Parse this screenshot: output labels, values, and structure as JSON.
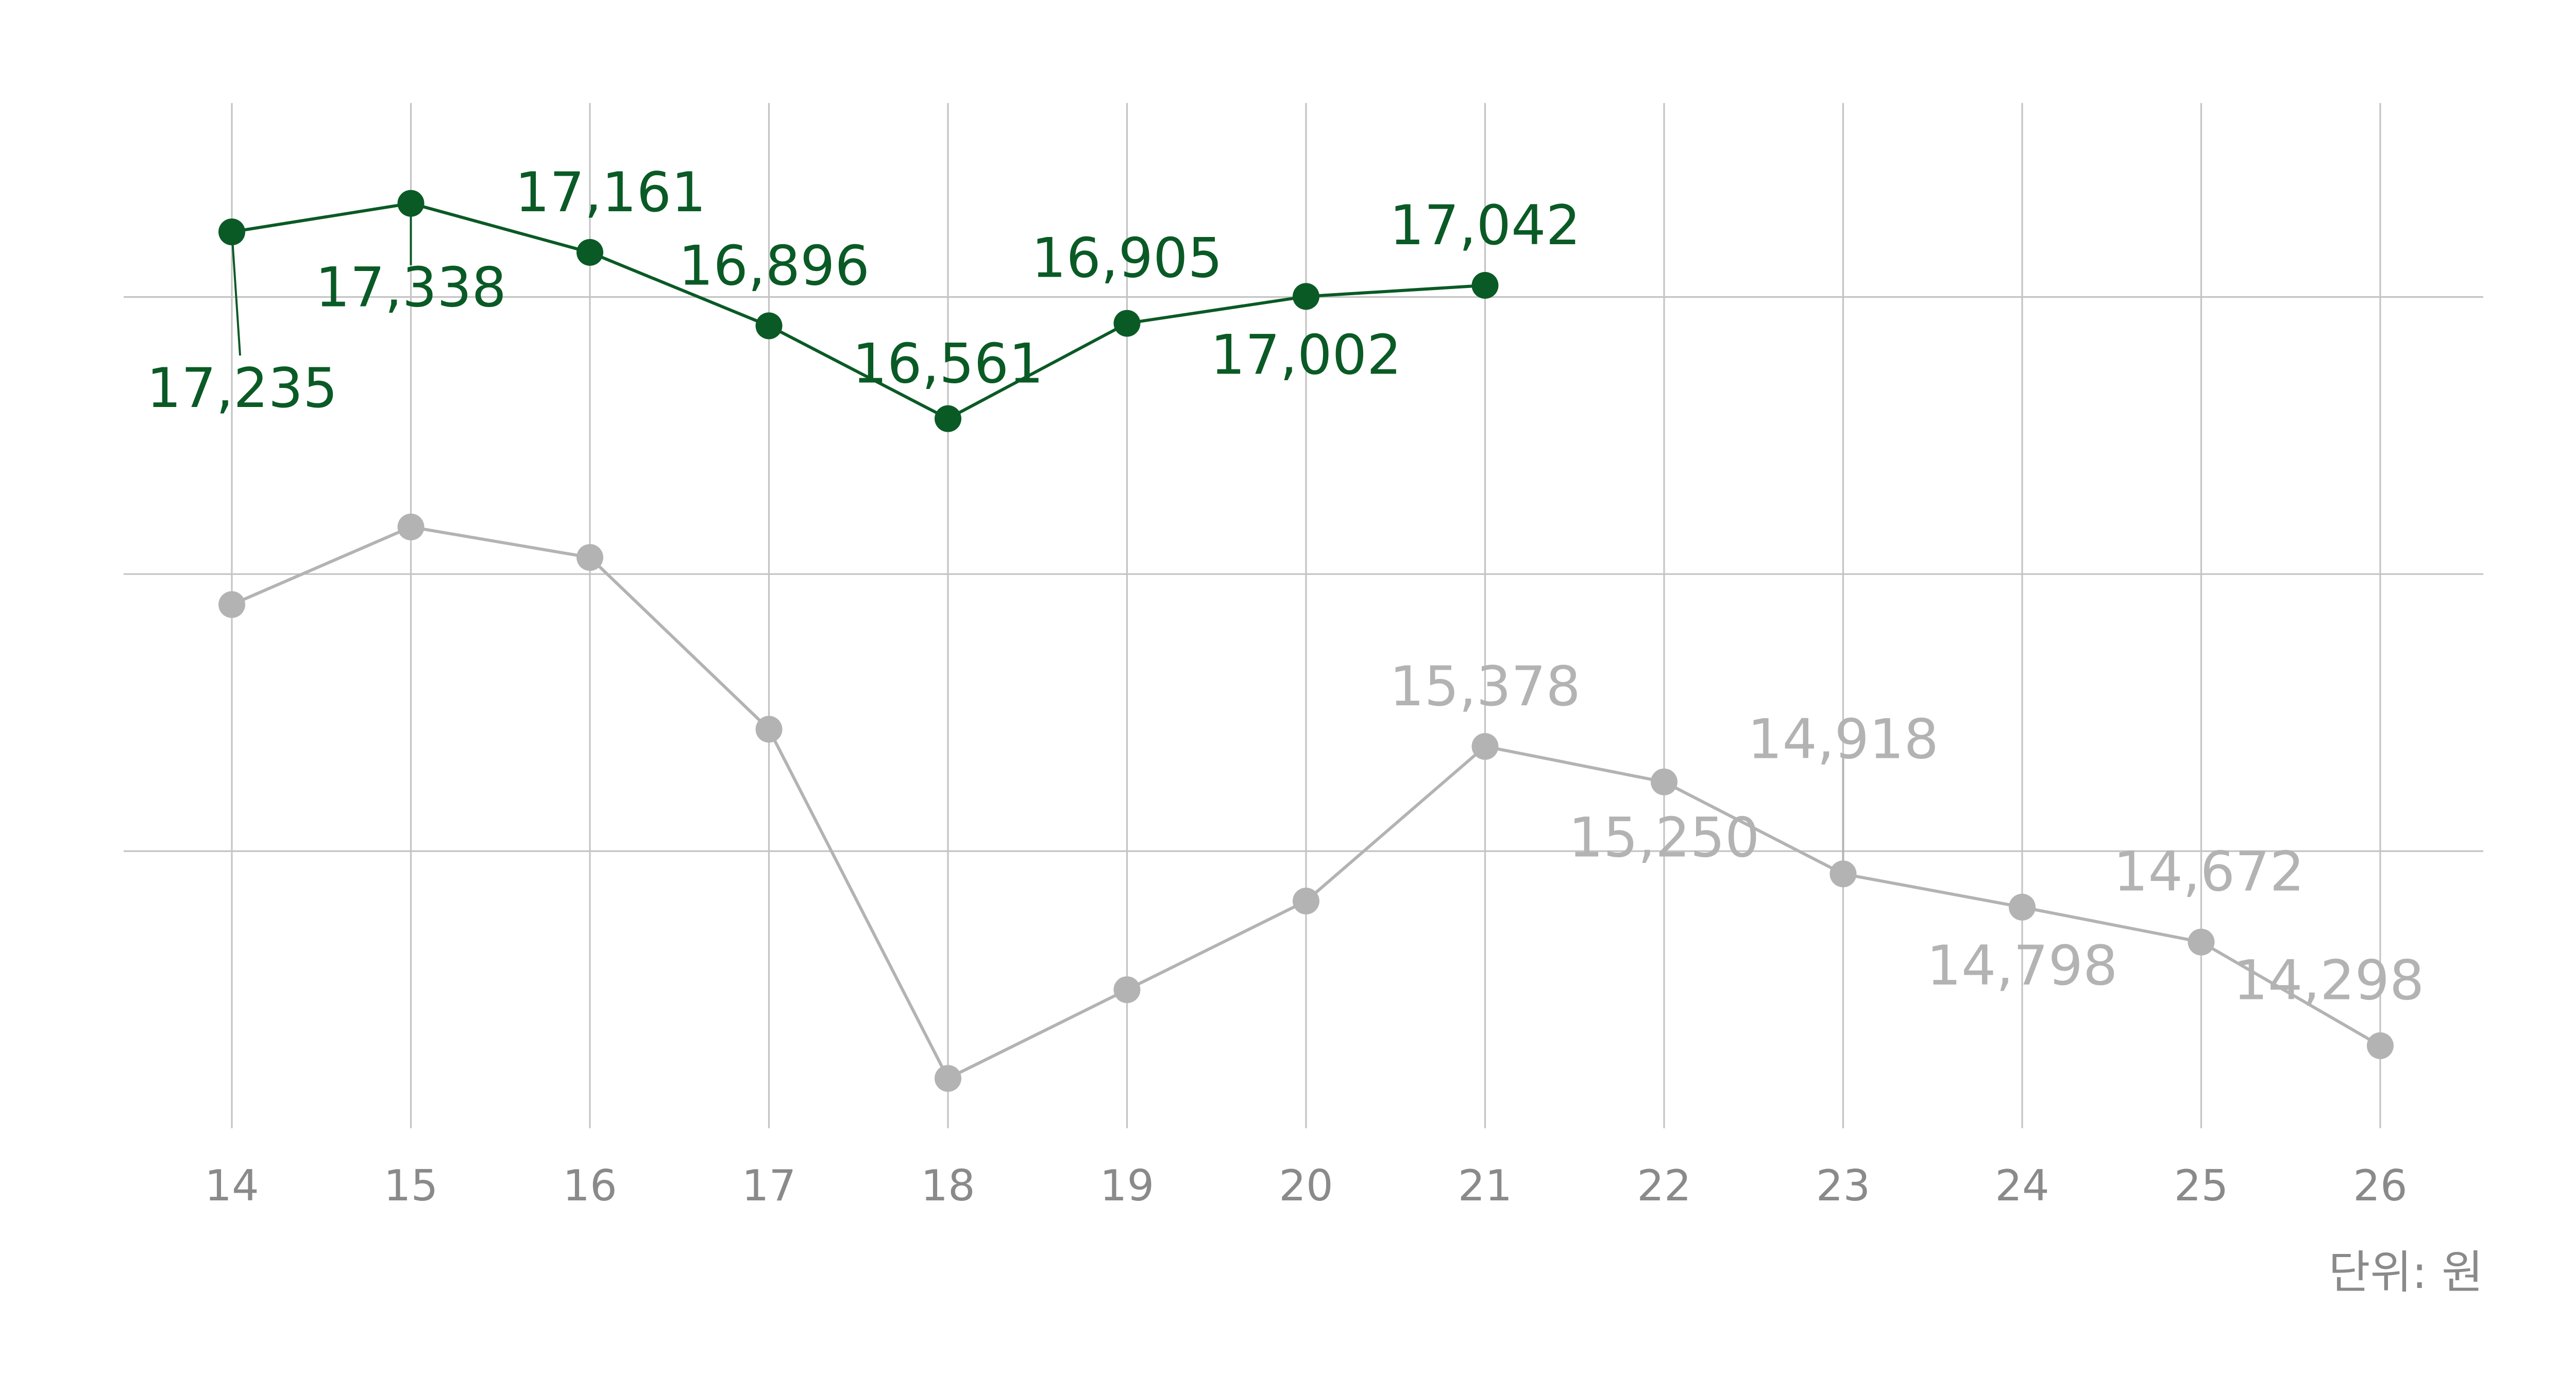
{
  "chart_data": {
    "type": "line",
    "x": [
      "14",
      "15",
      "16",
      "17",
      "18",
      "19",
      "20",
      "21",
      "22",
      "23",
      "24",
      "25",
      "26"
    ],
    "ylim": [
      14000,
      17700
    ],
    "horizontal_grid_values": [
      17000,
      16000,
      15000
    ],
    "vertical_grid": true,
    "series": [
      {
        "key": "green",
        "color": "#0a5a25",
        "values": [
          17235,
          17338,
          17161,
          16896,
          16561,
          16905,
          17002,
          17042,
          null,
          null,
          null,
          null,
          null
        ],
        "labels": [
          "17,235",
          "17,338",
          "17,161",
          "16,896",
          "16,561",
          "16,905",
          "17,002",
          "17,042",
          "",
          "",
          "",
          "",
          ""
        ]
      },
      {
        "key": "gray",
        "color": "#b3b3b3",
        "values": [
          15890,
          16170,
          16060,
          15440,
          14180,
          14500,
          14820,
          15378,
          15250,
          14918,
          14798,
          14672,
          14298
        ],
        "labels": [
          "",
          "",
          "",
          "",
          "",
          "",
          "",
          "15,378",
          "15,250",
          "14,918",
          "14,798",
          "14,672",
          "14,298"
        ]
      }
    ],
    "unit_label": "단위: 원"
  }
}
